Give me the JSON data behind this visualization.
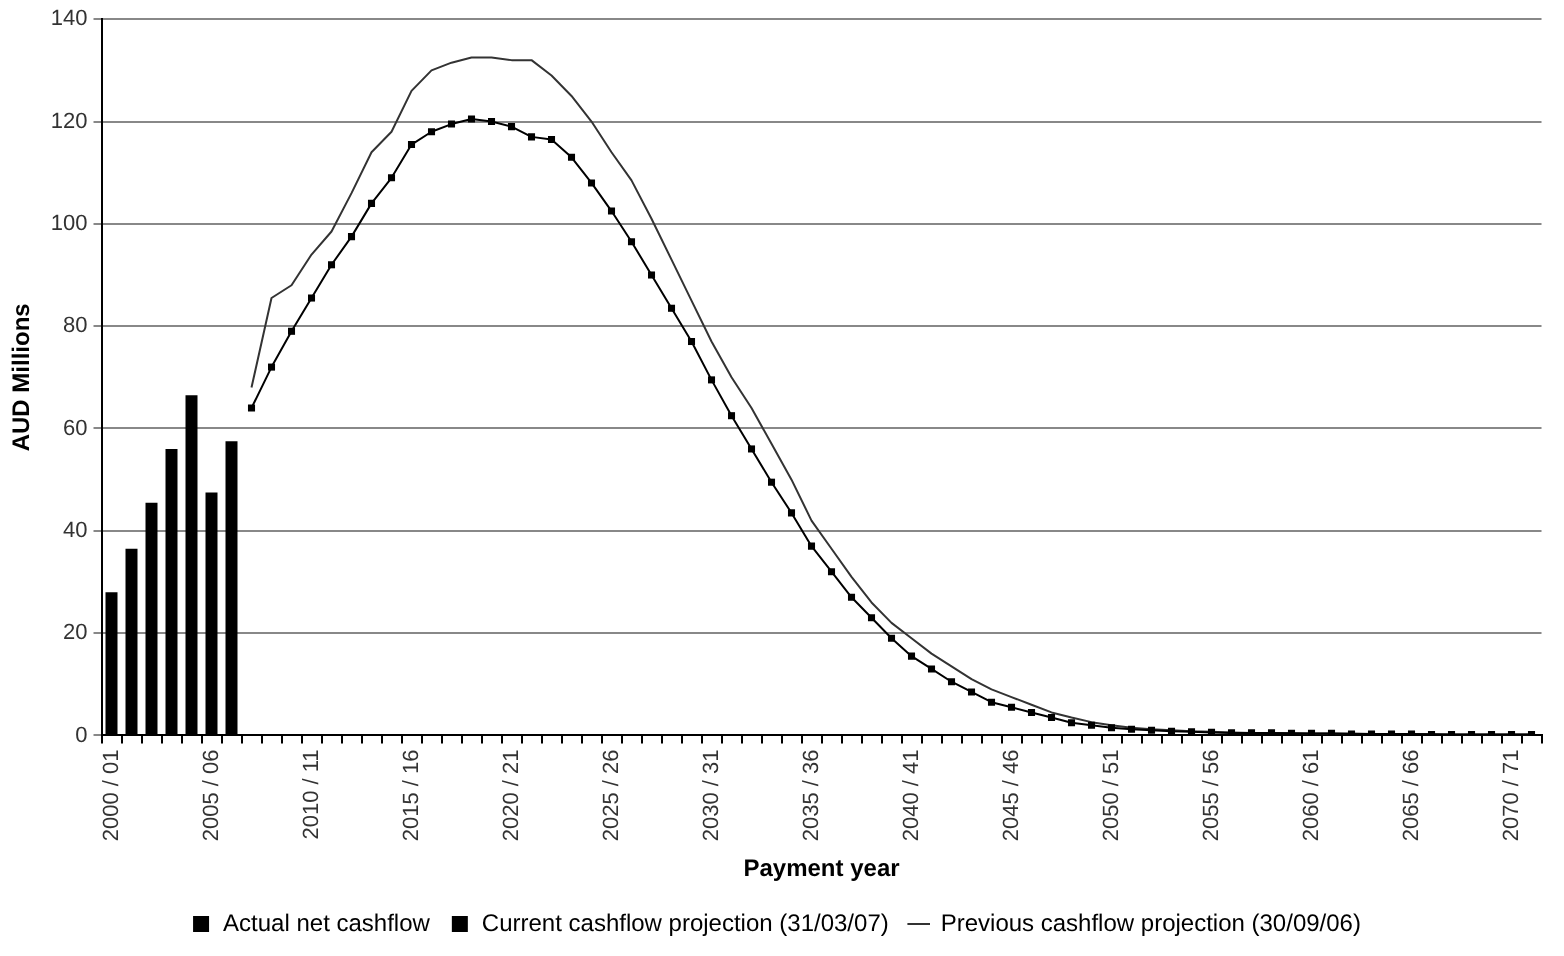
{
  "chart_data": {
    "type": "bar",
    "xlabel": "Payment year",
    "ylabel": "AUD Millions",
    "categories": [
      "2000 / 01",
      null,
      null,
      null,
      null,
      "2005 / 06",
      null,
      null,
      null,
      null,
      "2010 / 11",
      null,
      null,
      null,
      null,
      "2015 / 16",
      null,
      null,
      null,
      null,
      "2020 / 21",
      null,
      null,
      null,
      null,
      "2025 / 26",
      null,
      null,
      null,
      null,
      "2030 / 31",
      null,
      null,
      null,
      null,
      "2035 / 36",
      null,
      null,
      null,
      null,
      "2040 / 41",
      null,
      null,
      null,
      null,
      "2045 / 46",
      null,
      null,
      null,
      null,
      "2050 / 51",
      null,
      null,
      null,
      null,
      "2055 / 56",
      null,
      null,
      null,
      null,
      "2060 / 61",
      null,
      null,
      null,
      null,
      "2065 / 66",
      null,
      null,
      null,
      null,
      "2070 / 71",
      null
    ],
    "series": [
      {
        "name": "Actual net cashflow",
        "color": "#000000",
        "values": [
          28,
          36.5,
          45.5,
          56,
          66.5,
          47.5,
          57.5,
          null,
          null,
          null,
          null,
          null,
          null,
          null,
          null,
          null,
          null,
          null,
          null,
          null,
          null,
          null,
          null,
          null,
          null,
          null,
          null,
          null,
          null,
          null,
          null,
          null,
          null,
          null,
          null,
          null,
          null,
          null,
          null,
          null,
          null,
          null,
          null,
          null,
          null,
          null,
          null,
          null,
          null,
          null,
          null,
          null,
          null,
          null,
          null,
          null,
          null,
          null,
          null,
          null,
          null,
          null,
          null,
          null,
          null,
          null,
          null,
          null,
          null,
          null,
          null,
          null
        ]
      },
      {
        "name": "Current cashflow projection (31/03/07)",
        "type": "line",
        "marker": "square",
        "color": "#000000",
        "values": [
          null,
          null,
          null,
          null,
          null,
          null,
          null,
          64,
          72,
          79,
          85.5,
          92,
          97.5,
          104,
          109,
          115.5,
          118,
          119.5,
          120.5,
          120,
          119,
          117,
          116.5,
          113,
          108,
          102.5,
          96.5,
          90,
          83.5,
          77,
          69.5,
          62.5,
          56,
          49.5,
          43.5,
          37,
          32,
          27,
          23,
          19,
          15.5,
          13,
          10.5,
          8.5,
          6.5,
          5.5,
          4.5,
          3.5,
          2.5,
          2,
          1.5,
          1.2,
          1,
          0.8,
          0.7,
          0.6,
          0.5,
          0.5,
          0.5,
          0.4,
          0.4,
          0.4,
          0.3,
          0.3,
          0.3,
          0.3,
          0.2,
          0.2,
          0.2,
          0.2,
          0.2,
          0.2
        ]
      },
      {
        "name": "Previous cashflow projection (30/09/06)",
        "type": "line",
        "marker": "none",
        "color": "#333333",
        "values": [
          null,
          null,
          null,
          null,
          null,
          null,
          null,
          68,
          85.5,
          88,
          94,
          98.5,
          106,
          114,
          118,
          126,
          130,
          131.5,
          132.5,
          132.5,
          132,
          132,
          129,
          125,
          120,
          114,
          108.5,
          101,
          93,
          85,
          77,
          70,
          64,
          57,
          50,
          42,
          36.5,
          31,
          26,
          22,
          19,
          16,
          13.5,
          11,
          9,
          7.5,
          6,
          4.5,
          3.5,
          2.6,
          2,
          1.5,
          1.2,
          1,
          0.8,
          0.7,
          0.6,
          0.5,
          0.5,
          0.5,
          0.4,
          0.4,
          0.4,
          0.3,
          0.3,
          0.3,
          0.3,
          0.2,
          0.2,
          0.2,
          0.2,
          0.2
        ]
      }
    ],
    "ylim": [
      0,
      140
    ],
    "yticks": [
      0,
      20,
      40,
      60,
      80,
      100,
      120,
      140
    ],
    "grid": "y",
    "legend": "bottom"
  }
}
